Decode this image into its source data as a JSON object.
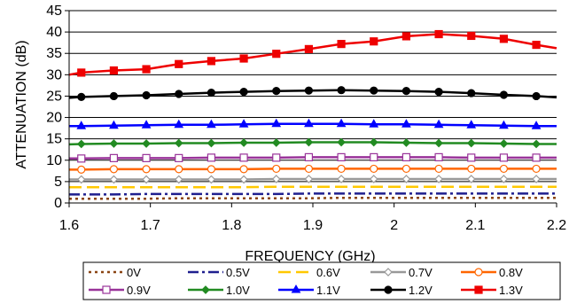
{
  "chart_data": {
    "type": "line",
    "xlabel": "FREQUENCY (GHz)",
    "ylabel": "ATTENUATION (dB)",
    "xlim": [
      1.6,
      2.2
    ],
    "ylim": [
      0,
      45
    ],
    "xticks": [
      1.6,
      1.7,
      1.8,
      1.9,
      2.0,
      2.1,
      2.2
    ],
    "xtick_labels": [
      "1.6",
      "1.7",
      "1.8",
      "1.9",
      "2",
      "2.1",
      "2.2"
    ],
    "yticks": [
      0,
      5,
      10,
      15,
      20,
      25,
      30,
      35,
      40,
      45
    ],
    "ytick_labels": [
      "0",
      "5",
      "10",
      "15",
      "20",
      "25",
      "30",
      "35",
      "40",
      "45"
    ],
    "grid": "horizontal",
    "legend_position": "bottom",
    "x": [
      1.6,
      1.615,
      1.655,
      1.695,
      1.735,
      1.775,
      1.815,
      1.855,
      1.895,
      1.935,
      1.975,
      2.015,
      2.055,
      2.095,
      2.135,
      2.175,
      2.2
    ],
    "series": [
      {
        "name": "0V",
        "color": "#8B4513",
        "dash": "3,4",
        "marker": "none",
        "values": [
          1.0,
          1.0,
          1.0,
          1.0,
          1.1,
          1.1,
          1.1,
          1.1,
          1.1,
          1.2,
          1.2,
          1.2,
          1.2,
          1.2,
          1.2,
          1.2,
          1.2
        ]
      },
      {
        "name": "0.5V",
        "color": "#1F1F8F",
        "dash": "12,4,3,4",
        "marker": "none",
        "values": [
          2.0,
          2.0,
          2.0,
          2.1,
          2.1,
          2.1,
          2.1,
          2.1,
          2.2,
          2.2,
          2.2,
          2.2,
          2.2,
          2.2,
          2.2,
          2.2,
          2.2
        ]
      },
      {
        "name": "0.6V",
        "color": "#FFC800",
        "dash": "14,6",
        "marker": "none",
        "values": [
          3.7,
          3.7,
          3.7,
          3.7,
          3.7,
          3.7,
          3.7,
          3.8,
          3.8,
          3.8,
          3.8,
          3.8,
          3.8,
          3.8,
          3.8,
          3.8,
          3.8
        ]
      },
      {
        "name": "0.7V",
        "color": "#999999",
        "dash": "",
        "marker": "diamond-open",
        "values": [
          5.5,
          5.5,
          5.5,
          5.5,
          5.5,
          5.5,
          5.5,
          5.6,
          5.6,
          5.6,
          5.6,
          5.6,
          5.6,
          5.6,
          5.6,
          5.6,
          5.6
        ]
      },
      {
        "name": "0.8V",
        "color": "#FF6600",
        "dash": "",
        "marker": "circle-open",
        "values": [
          7.8,
          7.8,
          7.9,
          7.9,
          7.9,
          7.9,
          7.9,
          8.0,
          8.0,
          8.0,
          8.0,
          8.0,
          8.0,
          8.0,
          8.0,
          8.0,
          8.0
        ]
      },
      {
        "name": "0.9V",
        "color": "#993399",
        "dash": "",
        "marker": "square-open",
        "values": [
          10.4,
          10.4,
          10.5,
          10.5,
          10.5,
          10.6,
          10.6,
          10.6,
          10.7,
          10.7,
          10.7,
          10.7,
          10.7,
          10.6,
          10.6,
          10.6,
          10.6
        ]
      },
      {
        "name": "1.0V",
        "color": "#228B22",
        "dash": "",
        "marker": "diamond",
        "values": [
          13.7,
          13.8,
          13.9,
          13.9,
          14.0,
          14.0,
          14.1,
          14.1,
          14.2,
          14.2,
          14.2,
          14.1,
          14.0,
          14.0,
          13.9,
          13.8,
          13.8
        ]
      },
      {
        "name": "1.1V",
        "color": "#0000FF",
        "dash": "",
        "marker": "triangle",
        "values": [
          18.0,
          18.0,
          18.1,
          18.2,
          18.3,
          18.3,
          18.4,
          18.5,
          18.5,
          18.5,
          18.4,
          18.4,
          18.3,
          18.2,
          18.1,
          18.0,
          18.0
        ]
      },
      {
        "name": "1.2V",
        "color": "#000000",
        "dash": "",
        "marker": "circle",
        "values": [
          24.6,
          24.8,
          25.0,
          25.2,
          25.5,
          25.8,
          26.0,
          26.2,
          26.3,
          26.4,
          26.3,
          26.2,
          26.0,
          25.7,
          25.3,
          25.0,
          24.7
        ]
      },
      {
        "name": "1.3V",
        "color": "#EE0000",
        "dash": "",
        "marker": "square",
        "values": [
          30.0,
          30.5,
          31.0,
          31.3,
          32.5,
          33.2,
          33.8,
          34.9,
          36.0,
          37.2,
          37.8,
          39.0,
          39.5,
          39.1,
          38.4,
          37.0,
          36.2
        ]
      }
    ]
  }
}
